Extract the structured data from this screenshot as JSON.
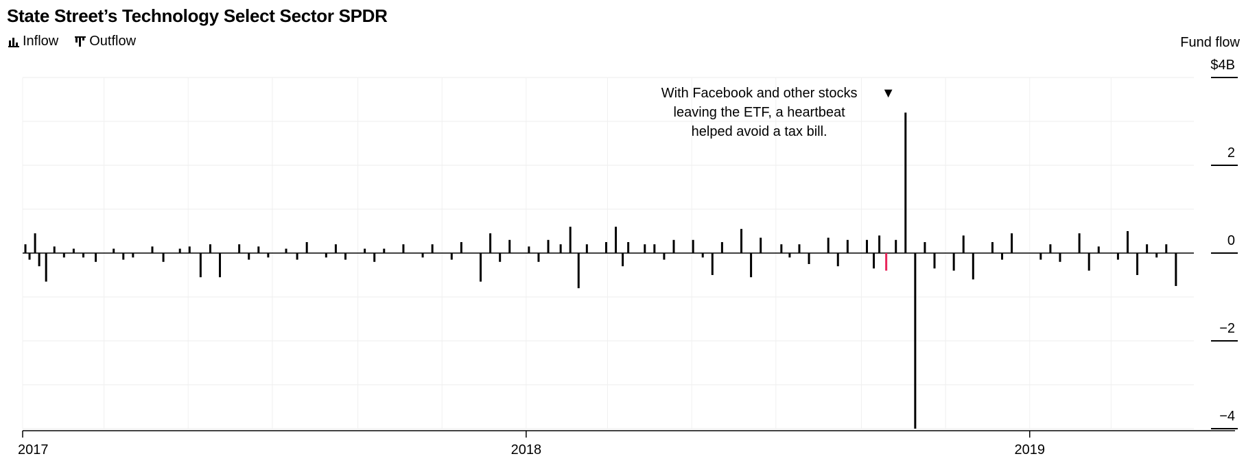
{
  "chart_data": {
    "type": "bar",
    "title": "State Street’s Technology Select Sector SPDR",
    "legend": [
      {
        "label": "Inflow",
        "icon": "inflow-bars-icon"
      },
      {
        "label": "Outflow",
        "icon": "outflow-bars-icon"
      }
    ],
    "legend_placement": "top-left",
    "y_axis_title": "Fund flow",
    "y_ticks": [
      {
        "value": 4,
        "label": "$4B"
      },
      {
        "value": 2,
        "label": "2"
      },
      {
        "value": 0,
        "label": "0"
      },
      {
        "value": -2,
        "label": "−2"
      },
      {
        "value": -4,
        "label": "−4"
      }
    ],
    "ylim": [
      -4,
      4
    ],
    "x_ticks": [
      "2017",
      "2018",
      "2019"
    ],
    "xlim": [
      "2017-01-01",
      "2019-04-30"
    ],
    "grid": true,
    "colors": {
      "bars": "#000000",
      "highlight_inflow": "#1eb4e6",
      "highlight_outflow": "#e8245a"
    },
    "series": [
      {
        "name": "Fund flow",
        "x": [
          "2017-01-03",
          "2017-01-06",
          "2017-01-10",
          "2017-01-13",
          "2017-01-18",
          "2017-01-24",
          "2017-01-31",
          "2017-02-07",
          "2017-02-14",
          "2017-02-23",
          "2017-03-08",
          "2017-03-15",
          "2017-03-22",
          "2017-04-05",
          "2017-04-13",
          "2017-04-25",
          "2017-05-02",
          "2017-05-10",
          "2017-05-17",
          "2017-05-24",
          "2017-06-07",
          "2017-06-14",
          "2017-06-21",
          "2017-06-28",
          "2017-07-11",
          "2017-07-19",
          "2017-07-26",
          "2017-08-09",
          "2017-08-16",
          "2017-08-23",
          "2017-09-06",
          "2017-09-13",
          "2017-09-20",
          "2017-10-04",
          "2017-10-18",
          "2017-10-25",
          "2017-11-08",
          "2017-11-15",
          "2017-11-29",
          "2017-12-06",
          "2017-12-13",
          "2017-12-20",
          "2018-01-03",
          "2018-01-10",
          "2018-01-17",
          "2018-01-26",
          "2018-02-02",
          "2018-02-08",
          "2018-02-14",
          "2018-02-28",
          "2018-03-07",
          "2018-03-12",
          "2018-03-16",
          "2018-03-28",
          "2018-04-04",
          "2018-04-11",
          "2018-04-18",
          "2018-05-02",
          "2018-05-09",
          "2018-05-16",
          "2018-05-23",
          "2018-06-06",
          "2018-06-13",
          "2018-06-20",
          "2018-07-05",
          "2018-07-11",
          "2018-07-18",
          "2018-07-25",
          "2018-08-08",
          "2018-08-15",
          "2018-08-22",
          "2018-09-05",
          "2018-09-10",
          "2018-09-14",
          "2018-09-19",
          "2018-09-26",
          "2018-10-03",
          "2018-10-10",
          "2018-10-17",
          "2018-10-24",
          "2018-11-07",
          "2018-11-14",
          "2018-11-21",
          "2018-12-05",
          "2018-12-12",
          "2018-12-19",
          "2019-01-09",
          "2019-01-16",
          "2019-01-23",
          "2019-02-06",
          "2019-02-13",
          "2019-02-20",
          "2019-03-06",
          "2019-03-13",
          "2019-03-20",
          "2019-03-27",
          "2019-04-03",
          "2019-04-10",
          "2019-04-17"
        ],
        "values": [
          0.2,
          -0.15,
          0.45,
          -0.3,
          -0.65,
          0.15,
          -0.1,
          0.1,
          -0.1,
          -0.2,
          0.1,
          -0.15,
          -0.1,
          0.15,
          -0.2,
          0.1,
          0.15,
          -0.55,
          0.2,
          -0.55,
          0.2,
          -0.15,
          0.15,
          -0.1,
          0.1,
          -0.15,
          0.25,
          -0.1,
          0.2,
          -0.15,
          0.1,
          -0.2,
          0.1,
          0.2,
          -0.1,
          0.2,
          -0.15,
          0.25,
          -0.65,
          0.45,
          -0.2,
          0.3,
          0.15,
          -0.2,
          0.3,
          0.2,
          0.6,
          -0.8,
          0.2,
          0.25,
          0.6,
          -0.3,
          0.25,
          0.2,
          0.2,
          -0.15,
          0.3,
          0.3,
          -0.1,
          -0.5,
          0.25,
          0.55,
          -0.55,
          0.35,
          0.2,
          -0.1,
          0.2,
          -0.25,
          0.35,
          -0.3,
          0.3,
          0.3,
          -0.35,
          0.4,
          -0.4,
          0.3,
          3.2,
          -4.0,
          0.25,
          -0.35,
          -0.4,
          0.4,
          -0.6,
          0.25,
          -0.15,
          0.45,
          -0.15,
          0.2,
          -0.2,
          0.45,
          -0.4,
          0.15,
          -0.15,
          0.5,
          -0.5,
          0.2,
          -0.1,
          0.2,
          -0.75
        ]
      }
    ],
    "annotations": [
      {
        "lines": [
          "With Facebook and other stocks",
          "leaving the ETF, a heartbeat",
          "helped avoid a tax bill."
        ],
        "marker": "▼",
        "date": "2018-09-19"
      }
    ]
  }
}
